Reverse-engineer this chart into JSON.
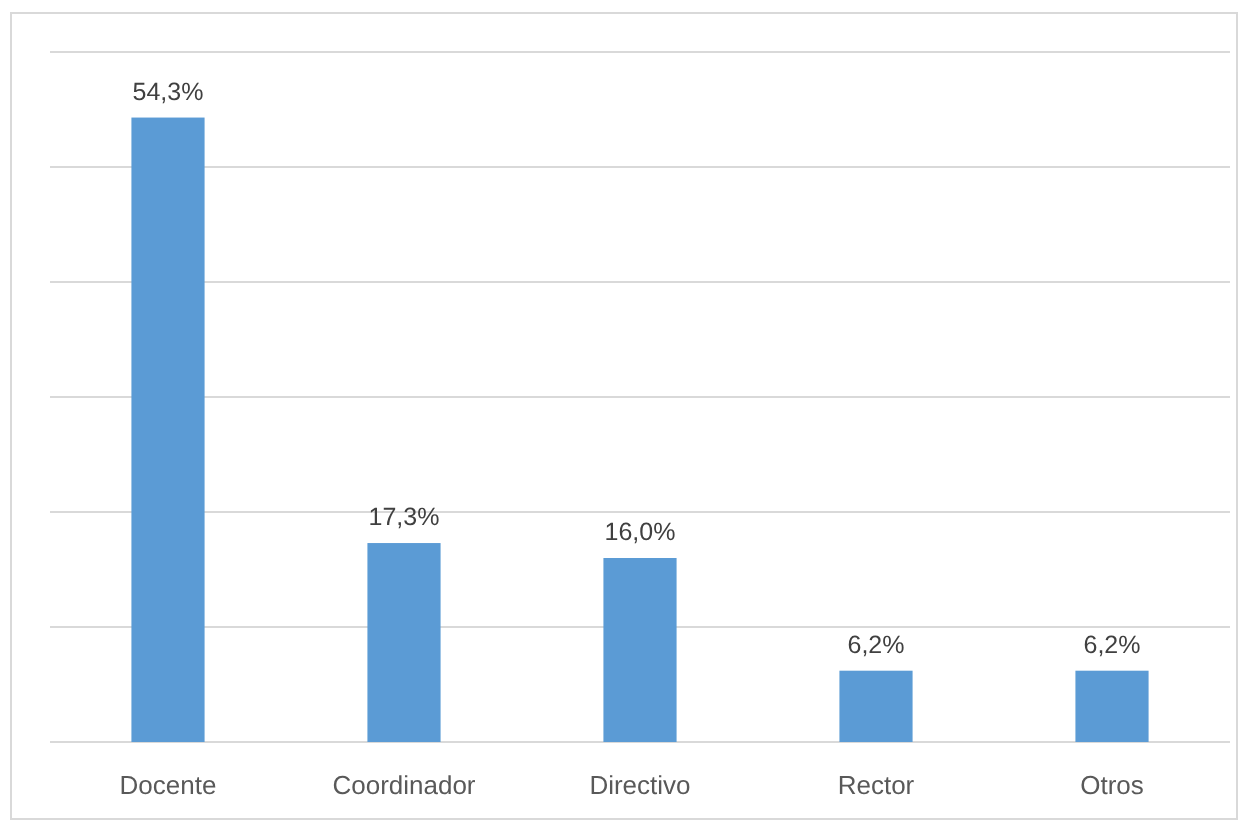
{
  "chart_data": {
    "type": "bar",
    "categories": [
      "Docente",
      "Coordinador",
      "Directivo",
      "Rector",
      "Otros"
    ],
    "values": [
      54.3,
      17.3,
      16.0,
      6.2,
      6.2
    ],
    "value_labels": [
      "54,3%",
      "17,3%",
      "16,0%",
      "6,2%",
      "6,2%"
    ],
    "color": "#5b9bd5",
    "ylim": [
      0,
      60
    ],
    "yticks": [
      {
        "value": 0,
        "label": null
      },
      {
        "value": 10,
        "label": null
      },
      {
        "value": 20,
        "label": null
      },
      {
        "value": 30,
        "label": null
      },
      {
        "value": 40,
        "label": null
      },
      {
        "value": 50,
        "label": null
      },
      {
        "value": 60,
        "label": null
      }
    ],
    "grid": "y",
    "tick_labels": "x"
  }
}
